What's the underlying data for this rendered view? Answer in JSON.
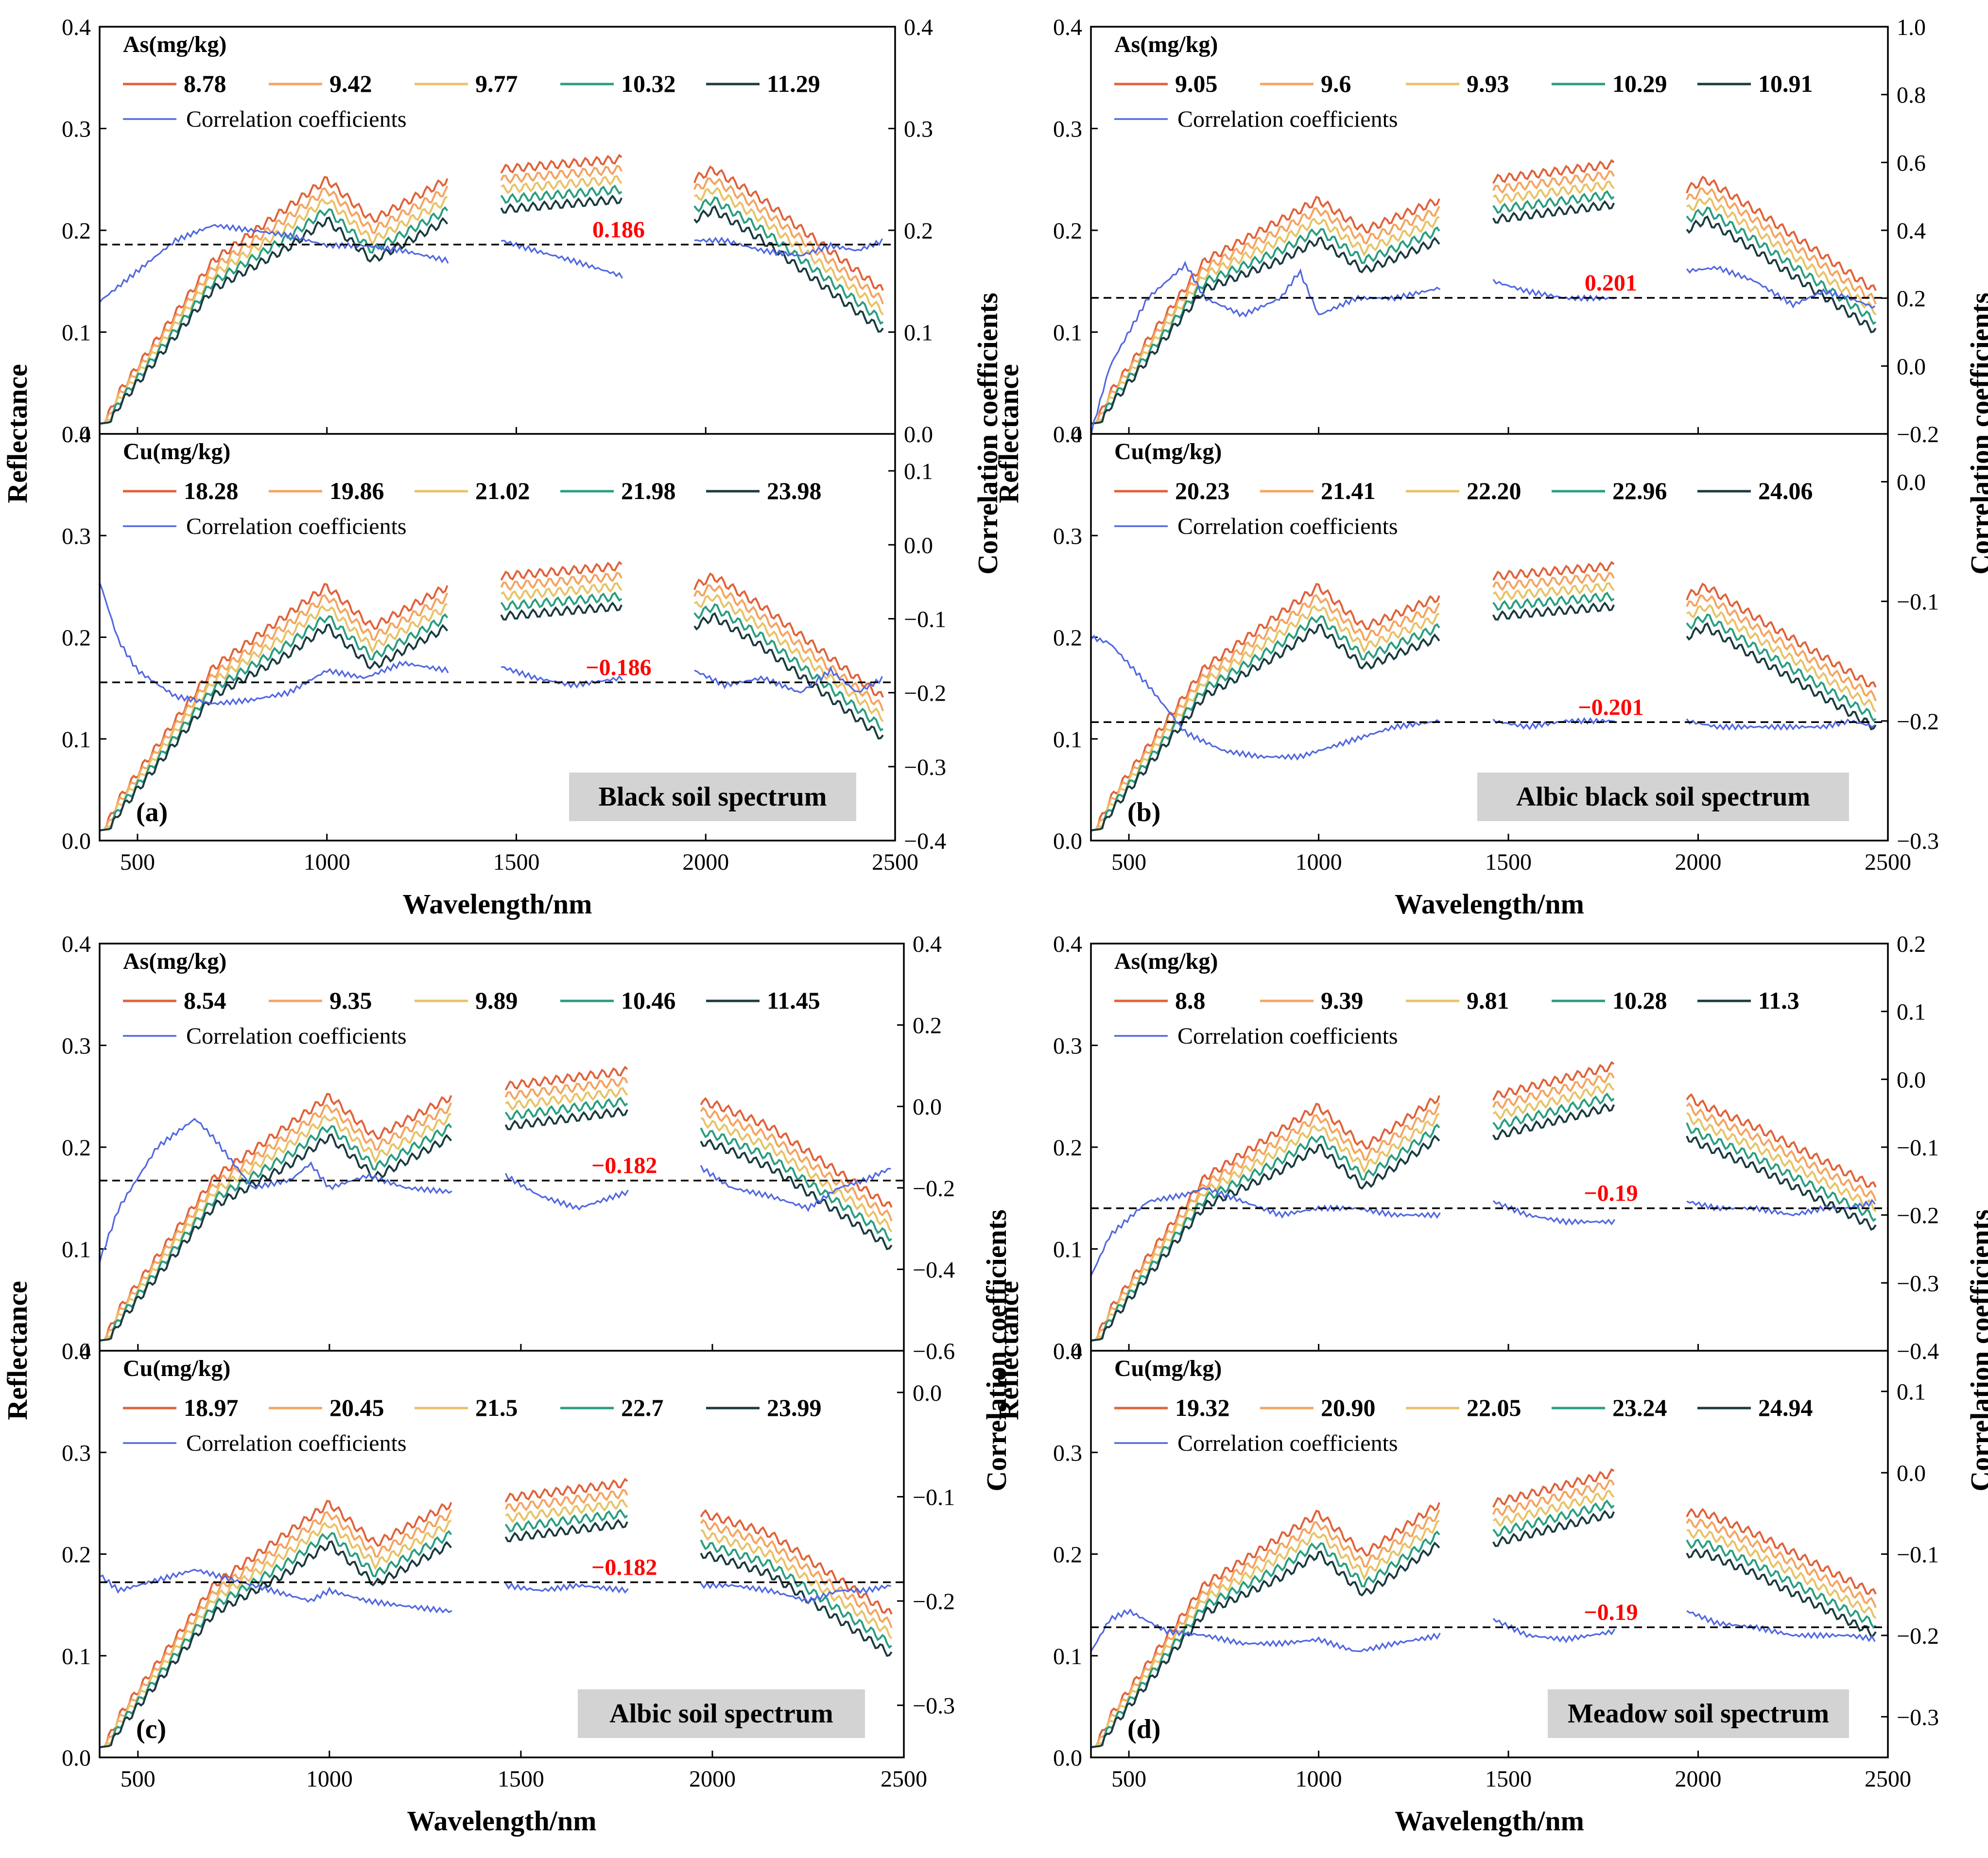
{
  "figure": {
    "x_label": "Wavelength/nm",
    "y_left_label": "Reflectance",
    "y_right_label": "Correlation coefficients",
    "x_ticks": [
      500,
      1000,
      1500,
      2000,
      2500
    ],
    "x_range": [
      400,
      2500
    ],
    "refl_range": [
      0.0,
      0.4
    ]
  },
  "colors": {
    "series": [
      "#e0623a",
      "#f4a460",
      "#e8c266",
      "#2a9d80",
      "#1b3a40"
    ],
    "corr": "#5067e0",
    "threshold_label": "#ff0000",
    "badge_bg": "#d3d3d3",
    "axis": "#000000"
  },
  "chart_data": [
    {
      "id": "a",
      "panel_label": "(a)",
      "badge": "Black soil spectrum",
      "top": {
        "metal": "As(mg/kg)",
        "concentrations": [
          "8.78",
          "9.42",
          "9.77",
          "10.32",
          "11.29"
        ],
        "corr_label": "Correlation coefficients",
        "right_ticks": [
          "0.0",
          "0.1",
          "0.2",
          "0.3",
          "0.4"
        ],
        "right_range": [
          0.0,
          0.4
        ],
        "threshold": 0.186,
        "threshold_label": "0.186",
        "refl_base": [
          0.0,
          0.04,
          0.17,
          0.25,
          0.21,
          0.25,
          0.26,
          0.27,
          0.25,
          0.26,
          0.23,
          0.14
        ],
        "refl_gap": 0.022,
        "corr_path": [
          [
            400,
            0.13
          ],
          [
            500,
            0.16
          ],
          [
            600,
            0.19
          ],
          [
            700,
            0.205
          ],
          [
            800,
            0.2
          ],
          [
            900,
            0.195
          ],
          [
            1000,
            0.185
          ],
          [
            1100,
            0.185
          ],
          [
            1200,
            0.18
          ],
          [
            1320,
            0.17
          ],
          [
            1460,
            0.19
          ],
          [
            1550,
            0.18
          ],
          [
            1650,
            0.17
          ],
          [
            1780,
            0.155
          ],
          [
            1970,
            0.19
          ],
          [
            2050,
            0.19
          ],
          [
            2150,
            0.18
          ],
          [
            2250,
            0.175
          ],
          [
            2330,
            0.185
          ],
          [
            2400,
            0.18
          ],
          [
            2470,
            0.19
          ]
        ]
      },
      "bottom": {
        "metal": "Cu(mg/kg)",
        "concentrations": [
          "18.28",
          "19.86",
          "21.02",
          "21.98",
          "23.98"
        ],
        "corr_label": "Correlation coefficients",
        "right_ticks": [
          "−0.4",
          "−0.3",
          "−0.2",
          "−0.1",
          "0.0",
          "0.1"
        ],
        "right_range": [
          -0.4,
          0.15
        ],
        "threshold": -0.186,
        "threshold_label": "−0.186",
        "refl_base": [
          0.0,
          0.04,
          0.17,
          0.25,
          0.21,
          0.25,
          0.26,
          0.27,
          0.25,
          0.26,
          0.23,
          0.14
        ],
        "refl_gap": 0.022,
        "corr_path": [
          [
            400,
            -0.05
          ],
          [
            450,
            -0.13
          ],
          [
            500,
            -0.17
          ],
          [
            600,
            -0.205
          ],
          [
            700,
            -0.215
          ],
          [
            800,
            -0.21
          ],
          [
            900,
            -0.2
          ],
          [
            1000,
            -0.17
          ],
          [
            1100,
            -0.18
          ],
          [
            1200,
            -0.16
          ],
          [
            1320,
            -0.17
          ],
          [
            1460,
            -0.165
          ],
          [
            1550,
            -0.18
          ],
          [
            1650,
            -0.19
          ],
          [
            1780,
            -0.18
          ],
          [
            1970,
            -0.17
          ],
          [
            2050,
            -0.19
          ],
          [
            2150,
            -0.18
          ],
          [
            2250,
            -0.2
          ],
          [
            2330,
            -0.17
          ],
          [
            2400,
            -0.2
          ],
          [
            2470,
            -0.18
          ]
        ]
      }
    },
    {
      "id": "b",
      "panel_label": "(b)",
      "badge": "Albic black soil spectrum",
      "top": {
        "metal": "As(mg/kg)",
        "concentrations": [
          "9.05",
          "9.6",
          "9.93",
          "10.29",
          "10.91"
        ],
        "corr_label": "Correlation coefficients",
        "right_ticks": [
          "−0.2",
          "0.0",
          "0.2",
          "0.4",
          "0.6",
          "0.8",
          "1.0"
        ],
        "right_range": [
          -0.2,
          1.0
        ],
        "threshold": 0.201,
        "threshold_label": "0.201",
        "refl_base": [
          0.0,
          0.04,
          0.17,
          0.23,
          0.2,
          0.23,
          0.25,
          0.265,
          0.24,
          0.25,
          0.22,
          0.14
        ],
        "refl_gap": 0.022,
        "corr_path": [
          [
            400,
            -0.2
          ],
          [
            450,
            0.0
          ],
          [
            550,
            0.2
          ],
          [
            650,
            0.3
          ],
          [
            700,
            0.2
          ],
          [
            800,
            0.15
          ],
          [
            900,
            0.2
          ],
          [
            950,
            0.28
          ],
          [
            1000,
            0.15
          ],
          [
            1100,
            0.2
          ],
          [
            1200,
            0.2
          ],
          [
            1320,
            0.23
          ],
          [
            1460,
            0.25
          ],
          [
            1550,
            0.22
          ],
          [
            1650,
            0.2
          ],
          [
            1780,
            0.2
          ],
          [
            1970,
            0.28
          ],
          [
            2050,
            0.29
          ],
          [
            2150,
            0.25
          ],
          [
            2250,
            0.18
          ],
          [
            2330,
            0.22
          ],
          [
            2400,
            0.2
          ],
          [
            2470,
            0.17
          ]
        ]
      },
      "bottom": {
        "metal": "Cu(mg/kg)",
        "concentrations": [
          "20.23",
          "21.41",
          "22.20",
          "22.96",
          "24.06"
        ],
        "corr_label": "Correlation coefficients",
        "right_ticks": [
          "−0.3",
          "−0.2",
          "−0.1",
          "0.0"
        ],
        "right_range": [
          -0.3,
          0.04
        ],
        "threshold": -0.201,
        "threshold_label": "−0.201",
        "refl_base": [
          0.0,
          0.04,
          0.17,
          0.25,
          0.21,
          0.24,
          0.26,
          0.27,
          0.24,
          0.25,
          0.22,
          0.15
        ],
        "refl_gap": 0.022,
        "corr_path": [
          [
            400,
            -0.13
          ],
          [
            450,
            -0.135
          ],
          [
            550,
            -0.17
          ],
          [
            650,
            -0.21
          ],
          [
            750,
            -0.225
          ],
          [
            850,
            -0.23
          ],
          [
            950,
            -0.23
          ],
          [
            1000,
            -0.225
          ],
          [
            1100,
            -0.215
          ],
          [
            1200,
            -0.205
          ],
          [
            1320,
            -0.2
          ],
          [
            1460,
            -0.2
          ],
          [
            1550,
            -0.205
          ],
          [
            1650,
            -0.2
          ],
          [
            1780,
            -0.2
          ],
          [
            1970,
            -0.2
          ],
          [
            2050,
            -0.205
          ],
          [
            2150,
            -0.205
          ],
          [
            2250,
            -0.205
          ],
          [
            2330,
            -0.205
          ],
          [
            2400,
            -0.2
          ],
          [
            2470,
            -0.205
          ]
        ]
      }
    },
    {
      "id": "c",
      "panel_label": "(c)",
      "badge": "Albic soil spectrum",
      "top": {
        "metal": "As(mg/kg)",
        "concentrations": [
          "8.54",
          "9.35",
          "9.89",
          "10.46",
          "11.45"
        ],
        "corr_label": "Correlation coefficients",
        "right_ticks": [
          "−0.6",
          "−0.4",
          "−0.2",
          "0.0",
          "0.2",
          "0.4"
        ],
        "right_range": [
          -0.6,
          0.4
        ],
        "threshold": -0.182,
        "threshold_label": "−0.182",
        "refl_base": [
          0.0,
          0.04,
          0.17,
          0.25,
          0.21,
          0.25,
          0.26,
          0.275,
          0.245,
          0.24,
          0.22,
          0.14
        ],
        "refl_gap": 0.022,
        "corr_path": [
          [
            400,
            -0.38
          ],
          [
            450,
            -0.25
          ],
          [
            550,
            -0.1
          ],
          [
            650,
            -0.03
          ],
          [
            700,
            -0.08
          ],
          [
            800,
            -0.2
          ],
          [
            900,
            -0.18
          ],
          [
            950,
            -0.14
          ],
          [
            1000,
            -0.2
          ],
          [
            1100,
            -0.17
          ],
          [
            1200,
            -0.2
          ],
          [
            1320,
            -0.21
          ],
          [
            1460,
            -0.17
          ],
          [
            1550,
            -0.22
          ],
          [
            1650,
            -0.25
          ],
          [
            1780,
            -0.21
          ],
          [
            1970,
            -0.15
          ],
          [
            2050,
            -0.2
          ],
          [
            2150,
            -0.22
          ],
          [
            2250,
            -0.25
          ],
          [
            2330,
            -0.2
          ],
          [
            2400,
            -0.18
          ],
          [
            2470,
            -0.15
          ]
        ]
      },
      "bottom": {
        "metal": "Cu(mg/kg)",
        "concentrations": [
          "18.97",
          "20.45",
          "21.5",
          "22.7",
          "23.99"
        ],
        "corr_label": "Correlation coefficients",
        "right_ticks": [
          "−0.3",
          "−0.2",
          "−0.1",
          "0.0"
        ],
        "right_range": [
          -0.35,
          0.04
        ],
        "threshold": -0.182,
        "threshold_label": "−0.182",
        "refl_base": [
          0.0,
          0.04,
          0.17,
          0.25,
          0.21,
          0.25,
          0.255,
          0.27,
          0.24,
          0.235,
          0.22,
          0.14
        ],
        "refl_gap": 0.022,
        "corr_path": [
          [
            400,
            -0.175
          ],
          [
            450,
            -0.19
          ],
          [
            550,
            -0.18
          ],
          [
            650,
            -0.17
          ],
          [
            750,
            -0.18
          ],
          [
            850,
            -0.19
          ],
          [
            950,
            -0.2
          ],
          [
            1000,
            -0.19
          ],
          [
            1100,
            -0.2
          ],
          [
            1200,
            -0.205
          ],
          [
            1320,
            -0.21
          ],
          [
            1460,
            -0.185
          ],
          [
            1550,
            -0.19
          ],
          [
            1650,
            -0.185
          ],
          [
            1780,
            -0.19
          ],
          [
            1970,
            -0.185
          ],
          [
            2050,
            -0.185
          ],
          [
            2150,
            -0.19
          ],
          [
            2250,
            -0.2
          ],
          [
            2330,
            -0.19
          ],
          [
            2400,
            -0.19
          ],
          [
            2470,
            -0.185
          ]
        ]
      }
    },
    {
      "id": "d",
      "panel_label": "(d)",
      "badge": "Meadow soil spectrum",
      "top": {
        "metal": "As(mg/kg)",
        "concentrations": [
          "8.8",
          "9.39",
          "9.81",
          "10.28",
          "11.3"
        ],
        "corr_label": "Correlation coefficients",
        "right_ticks": [
          "−0.4",
          "−0.3",
          "−0.2",
          "−0.1",
          "0.0",
          "0.1",
          "0.2"
        ],
        "right_range": [
          -0.4,
          0.2
        ],
        "threshold": -0.19,
        "threshold_label": "−0.19",
        "refl_base": [
          0.0,
          0.04,
          0.17,
          0.24,
          0.2,
          0.25,
          0.25,
          0.28,
          0.25,
          0.24,
          0.22,
          0.16
        ],
        "refl_gap": 0.022,
        "corr_path": [
          [
            400,
            -0.29
          ],
          [
            450,
            -0.23
          ],
          [
            550,
            -0.18
          ],
          [
            650,
            -0.17
          ],
          [
            700,
            -0.16
          ],
          [
            800,
            -0.18
          ],
          [
            900,
            -0.2
          ],
          [
            1000,
            -0.19
          ],
          [
            1100,
            -0.19
          ],
          [
            1200,
            -0.2
          ],
          [
            1320,
            -0.2
          ],
          [
            1460,
            -0.18
          ],
          [
            1550,
            -0.2
          ],
          [
            1650,
            -0.21
          ],
          [
            1780,
            -0.21
          ],
          [
            1970,
            -0.18
          ],
          [
            2050,
            -0.19
          ],
          [
            2150,
            -0.19
          ],
          [
            2250,
            -0.2
          ],
          [
            2330,
            -0.19
          ],
          [
            2400,
            -0.19
          ],
          [
            2470,
            -0.18
          ]
        ]
      },
      "bottom": {
        "metal": "Cu(mg/kg)",
        "concentrations": [
          "19.32",
          "20.90",
          "22.05",
          "23.24",
          "24.94"
        ],
        "corr_label": "Correlation coefficients",
        "right_ticks": [
          "−0.3",
          "−0.2",
          "−0.1",
          "0.0",
          "0.1"
        ],
        "right_range": [
          -0.35,
          0.15
        ],
        "threshold": -0.19,
        "threshold_label": "−0.19",
        "refl_base": [
          0.0,
          0.04,
          0.17,
          0.24,
          0.2,
          0.25,
          0.25,
          0.28,
          0.24,
          0.24,
          0.22,
          0.16
        ],
        "refl_gap": 0.022,
        "corr_path": [
          [
            400,
            -0.22
          ],
          [
            450,
            -0.18
          ],
          [
            500,
            -0.17
          ],
          [
            600,
            -0.195
          ],
          [
            700,
            -0.2
          ],
          [
            800,
            -0.21
          ],
          [
            900,
            -0.21
          ],
          [
            1000,
            -0.205
          ],
          [
            1100,
            -0.22
          ],
          [
            1200,
            -0.21
          ],
          [
            1320,
            -0.2
          ],
          [
            1460,
            -0.18
          ],
          [
            1550,
            -0.2
          ],
          [
            1650,
            -0.205
          ],
          [
            1780,
            -0.195
          ],
          [
            1970,
            -0.17
          ],
          [
            2050,
            -0.185
          ],
          [
            2150,
            -0.19
          ],
          [
            2250,
            -0.2
          ],
          [
            2330,
            -0.2
          ],
          [
            2400,
            -0.2
          ],
          [
            2470,
            -0.205
          ]
        ]
      }
    }
  ]
}
